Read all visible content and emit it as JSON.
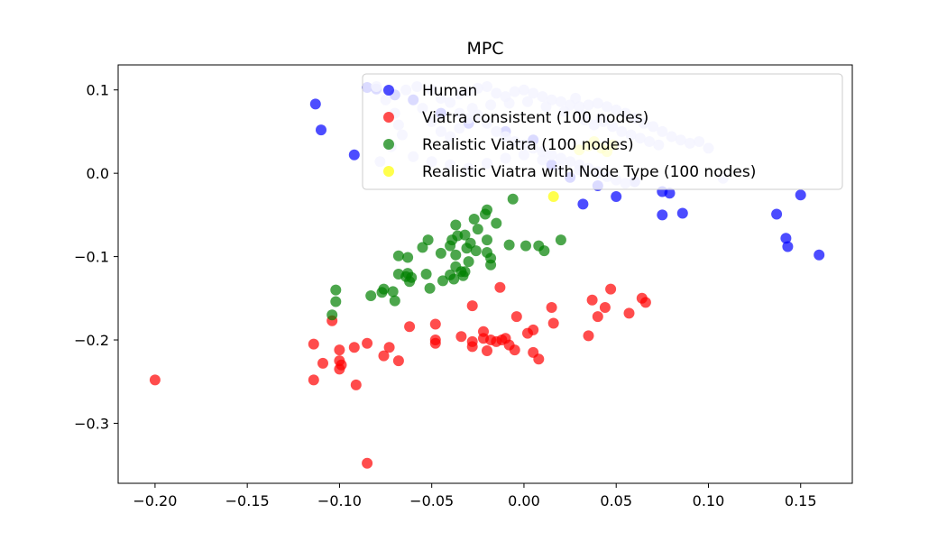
{
  "chart_data": {
    "type": "scatter",
    "title": "MPC",
    "xlabel": "",
    "ylabel": "",
    "xlim": [
      -0.22,
      0.178
    ],
    "ylim": [
      -0.372,
      0.13
    ],
    "xticks": [
      -0.2,
      -0.15,
      -0.1,
      -0.05,
      0.0,
      0.05,
      0.1,
      0.15
    ],
    "xtick_labels": [
      "−0.20",
      "−0.15",
      "−0.10",
      "−0.05",
      "0.00",
      "0.05",
      "0.10",
      "0.15"
    ],
    "yticks": [
      0.1,
      0.0,
      -0.1,
      -0.2,
      -0.3
    ],
    "ytick_labels": [
      "0.1",
      "0.0",
      "−0.1",
      "−0.2",
      "−0.3"
    ],
    "grid": false,
    "legend_position": "upper right",
    "series": [
      {
        "name": "Human",
        "color": "#0000ff",
        "points": [
          [
            -0.113,
            0.083
          ],
          [
            -0.11,
            0.052
          ],
          [
            -0.092,
            0.022
          ],
          [
            -0.085,
            0.103
          ],
          [
            -0.08,
            0.101
          ],
          [
            -0.07,
            0.094
          ],
          [
            -0.06,
            0.088
          ],
          [
            -0.045,
            0.072
          ],
          [
            -0.03,
            0.06
          ],
          [
            -0.01,
            0.05
          ],
          [
            0.005,
            0.04
          ],
          [
            0.015,
            0.01
          ],
          [
            0.025,
            -0.005
          ],
          [
            0.032,
            -0.037
          ],
          [
            0.04,
            -0.015
          ],
          [
            0.05,
            -0.028
          ],
          [
            0.06,
            -0.01
          ],
          [
            0.075,
            -0.022
          ],
          [
            0.075,
            -0.05
          ],
          [
            0.079,
            -0.024
          ],
          [
            0.086,
            -0.048
          ],
          [
            0.137,
            -0.049
          ],
          [
            0.142,
            -0.078
          ],
          [
            0.143,
            -0.088
          ],
          [
            0.15,
            -0.026
          ],
          [
            0.16,
            -0.098
          ]
        ]
      },
      {
        "name": "Viatra consistent (100 nodes)",
        "color": "#ff0000",
        "points": [
          [
            -0.2,
            -0.248
          ],
          [
            -0.114,
            -0.205
          ],
          [
            -0.114,
            -0.248
          ],
          [
            -0.109,
            -0.228
          ],
          [
            -0.104,
            -0.177
          ],
          [
            -0.1,
            -0.212
          ],
          [
            -0.1,
            -0.225
          ],
          [
            -0.1,
            -0.235
          ],
          [
            -0.099,
            -0.23
          ],
          [
            -0.092,
            -0.209
          ],
          [
            -0.091,
            -0.254
          ],
          [
            -0.085,
            -0.204
          ],
          [
            -0.085,
            -0.348
          ],
          [
            -0.076,
            -0.219
          ],
          [
            -0.073,
            -0.209
          ],
          [
            -0.068,
            -0.225
          ],
          [
            -0.062,
            -0.184
          ],
          [
            -0.048,
            -0.181
          ],
          [
            -0.048,
            -0.2
          ],
          [
            -0.048,
            -0.204
          ],
          [
            -0.034,
            -0.196
          ],
          [
            -0.028,
            -0.159
          ],
          [
            -0.028,
            -0.202
          ],
          [
            -0.028,
            -0.208
          ],
          [
            -0.022,
            -0.19
          ],
          [
            -0.022,
            -0.198
          ],
          [
            -0.02,
            -0.213
          ],
          [
            -0.018,
            -0.2
          ],
          [
            -0.015,
            -0.202
          ],
          [
            -0.013,
            -0.137
          ],
          [
            -0.012,
            -0.2
          ],
          [
            -0.01,
            -0.198
          ],
          [
            -0.008,
            -0.206
          ],
          [
            -0.005,
            -0.212
          ],
          [
            -0.004,
            -0.172
          ],
          [
            0.002,
            -0.192
          ],
          [
            0.005,
            -0.188
          ],
          [
            0.005,
            -0.215
          ],
          [
            0.008,
            -0.223
          ],
          [
            0.015,
            -0.161
          ],
          [
            0.016,
            -0.18
          ],
          [
            0.035,
            -0.195
          ],
          [
            0.037,
            -0.152
          ],
          [
            0.04,
            -0.172
          ],
          [
            0.044,
            -0.161
          ],
          [
            0.047,
            -0.139
          ],
          [
            0.057,
            -0.168
          ],
          [
            0.064,
            -0.15
          ],
          [
            0.066,
            -0.155
          ]
        ]
      },
      {
        "name": "Realistic Viatra (100 nodes)",
        "color": "#008000",
        "points": [
          [
            -0.104,
            -0.17
          ],
          [
            -0.102,
            -0.14
          ],
          [
            -0.102,
            -0.154
          ],
          [
            -0.083,
            -0.147
          ],
          [
            -0.077,
            -0.143
          ],
          [
            -0.076,
            -0.139
          ],
          [
            -0.071,
            -0.142
          ],
          [
            -0.07,
            -0.153
          ],
          [
            -0.068,
            -0.099
          ],
          [
            -0.068,
            -0.121
          ],
          [
            -0.064,
            -0.124
          ],
          [
            -0.063,
            -0.101
          ],
          [
            -0.063,
            -0.12
          ],
          [
            -0.062,
            -0.13
          ],
          [
            -0.061,
            -0.125
          ],
          [
            -0.055,
            -0.089
          ],
          [
            -0.053,
            -0.121
          ],
          [
            -0.052,
            -0.08
          ],
          [
            -0.051,
            -0.138
          ],
          [
            -0.045,
            -0.096
          ],
          [
            -0.044,
            -0.129
          ],
          [
            -0.04,
            -0.087
          ],
          [
            -0.04,
            -0.122
          ],
          [
            -0.039,
            -0.08
          ],
          [
            -0.038,
            -0.127
          ],
          [
            -0.037,
            -0.098
          ],
          [
            -0.037,
            -0.112
          ],
          [
            -0.037,
            -0.062
          ],
          [
            -0.036,
            -0.075
          ],
          [
            -0.034,
            -0.118
          ],
          [
            -0.033,
            -0.123
          ],
          [
            -0.032,
            -0.074
          ],
          [
            -0.032,
            -0.118
          ],
          [
            -0.031,
            -0.09
          ],
          [
            -0.03,
            -0.106
          ],
          [
            -0.029,
            -0.084
          ],
          [
            -0.027,
            -0.055
          ],
          [
            -0.026,
            -0.093
          ],
          [
            -0.025,
            -0.067
          ],
          [
            -0.021,
            -0.049
          ],
          [
            -0.02,
            -0.044
          ],
          [
            -0.02,
            -0.08
          ],
          [
            -0.02,
            -0.095
          ],
          [
            -0.018,
            -0.102
          ],
          [
            -0.018,
            -0.11
          ],
          [
            -0.015,
            -0.06
          ],
          [
            -0.008,
            -0.086
          ],
          [
            -0.006,
            -0.031
          ],
          [
            0.001,
            -0.087
          ],
          [
            0.008,
            -0.087
          ],
          [
            0.011,
            -0.093
          ],
          [
            0.02,
            -0.08
          ]
        ]
      },
      {
        "name": "Realistic Viatra with Node Type (100 nodes)",
        "color": "#ffff00",
        "points": [
          [
            0.016,
            -0.028
          ],
          [
            0.03,
            0.028
          ],
          [
            0.035,
            0.033
          ],
          [
            0.038,
            0.038
          ],
          [
            0.042,
            0.03
          ],
          [
            0.045,
            0.026
          ],
          [
            0.048,
            0.034
          ]
        ]
      },
      {
        "name": "",
        "color": "#c8c8ff",
        "legend": false,
        "points": [
          [
            -0.08,
            0.104
          ],
          [
            -0.075,
            0.088
          ],
          [
            -0.07,
            0.072
          ],
          [
            -0.068,
            0.058
          ],
          [
            -0.066,
            0.046
          ],
          [
            -0.072,
            0.032
          ],
          [
            -0.078,
            0.014
          ],
          [
            -0.058,
            0.104
          ],
          [
            -0.05,
            0.1
          ],
          [
            -0.045,
            0.09
          ],
          [
            -0.04,
            0.085
          ],
          [
            -0.035,
            0.095
          ],
          [
            -0.03,
            0.098
          ],
          [
            -0.025,
            0.102
          ],
          [
            -0.02,
            0.104
          ],
          [
            -0.015,
            0.096
          ],
          [
            -0.01,
            0.092
          ],
          [
            -0.005,
            0.098
          ],
          [
            0.0,
            0.1
          ],
          [
            0.005,
            0.096
          ],
          [
            0.01,
            0.092
          ],
          [
            0.015,
            0.088
          ],
          [
            0.02,
            0.086
          ],
          [
            0.025,
            0.082
          ],
          [
            0.03,
            0.08
          ],
          [
            0.035,
            0.082
          ],
          [
            0.04,
            0.084
          ],
          [
            0.045,
            0.08
          ],
          [
            0.05,
            0.076
          ],
          [
            0.055,
            0.072
          ],
          [
            0.06,
            0.066
          ],
          [
            0.065,
            0.06
          ],
          [
            0.07,
            0.056
          ],
          [
            0.075,
            0.05
          ],
          [
            0.08,
            0.044
          ],
          [
            0.085,
            0.04
          ],
          [
            0.09,
            0.036
          ],
          [
            0.095,
            0.038
          ],
          [
            0.1,
            0.03
          ],
          [
            0.108,
            -0.006
          ],
          [
            -0.055,
            0.078
          ],
          [
            -0.05,
            0.062
          ],
          [
            -0.045,
            0.05
          ],
          [
            -0.04,
            0.044
          ],
          [
            -0.035,
            0.054
          ],
          [
            -0.03,
            0.066
          ],
          [
            -0.025,
            0.07
          ],
          [
            -0.02,
            0.06
          ],
          [
            -0.015,
            0.05
          ],
          [
            -0.01,
            0.044
          ],
          [
            -0.005,
            0.038
          ],
          [
            0.0,
            0.034
          ],
          [
            0.005,
            0.03
          ],
          [
            0.01,
            0.026
          ],
          [
            0.015,
            0.022
          ],
          [
            0.02,
            0.018
          ],
          [
            0.025,
            0.014
          ],
          [
            0.03,
            0.01
          ],
          [
            0.035,
            0.006
          ],
          [
            0.04,
            0.002
          ],
          [
            0.045,
            -0.004
          ],
          [
            0.05,
            -0.008
          ],
          [
            0.055,
            -0.012
          ],
          [
            0.06,
            -0.01
          ],
          [
            -0.06,
            0.02
          ],
          [
            -0.05,
            0.014
          ],
          [
            -0.04,
            0.01
          ],
          [
            -0.03,
            0.006
          ],
          [
            -0.02,
            0.012
          ],
          [
            -0.01,
            0.018
          ],
          [
            0.0,
            0.022
          ],
          [
            0.01,
            0.016
          ],
          [
            0.02,
            0.008
          ],
          [
            0.03,
            0.004
          ],
          [
            0.04,
            0.0
          ],
          [
            0.028,
            0.09
          ],
          [
            0.033,
            0.064
          ],
          [
            0.038,
            0.058
          ],
          [
            0.043,
            0.062
          ],
          [
            0.048,
            0.056
          ],
          [
            0.053,
            0.05
          ],
          [
            0.058,
            0.046
          ],
          [
            0.063,
            0.042
          ],
          [
            0.068,
            0.038
          ],
          [
            0.073,
            0.034
          ],
          [
            -0.035,
            0.072
          ],
          [
            -0.028,
            0.078
          ],
          [
            -0.018,
            0.082
          ],
          [
            -0.008,
            0.084
          ],
          [
            0.002,
            0.086
          ],
          [
            0.012,
            0.08
          ],
          [
            0.022,
            0.074
          ],
          [
            0.032,
            0.07
          ],
          [
            0.042,
            0.066
          ],
          [
            -0.064,
            0.1
          ]
        ]
      }
    ]
  }
}
